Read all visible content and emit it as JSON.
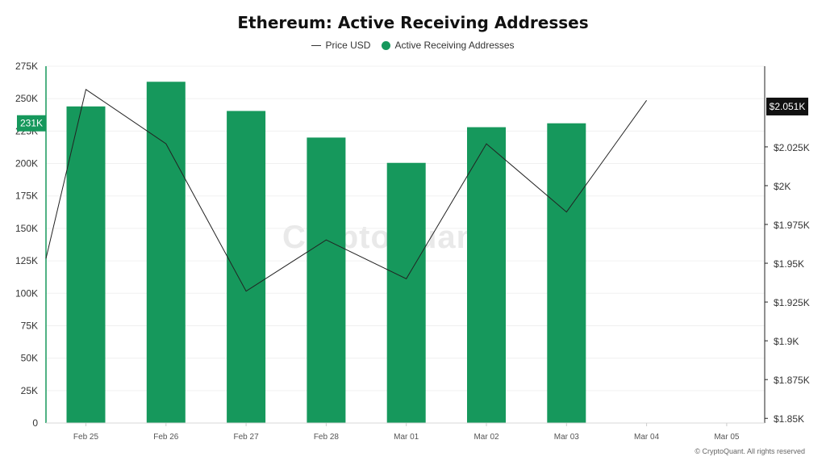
{
  "chart_data": {
    "type": "bar",
    "title": "Ethereum: Active Receiving Addresses",
    "categories": [
      "Feb 25",
      "Feb 26",
      "Feb 27",
      "Feb 28",
      "Mar 01",
      "Mar 02",
      "Mar 03",
      "Mar 04",
      "Mar 05"
    ],
    "series": [
      {
        "name": "Active Receiving Addresses",
        "type": "bar",
        "axis": "left",
        "color": "#16985c",
        "values": [
          244000,
          263000,
          240500,
          220000,
          200500,
          228000,
          231000,
          null,
          null
        ]
      },
      {
        "name": "Price USD",
        "type": "line",
        "axis": "right",
        "color": "#222222",
        "x_points": [
          -0.5,
          0,
          1,
          2,
          3,
          4,
          5,
          6,
          7
        ],
        "values": [
          1953,
          2062,
          2027,
          1932,
          1965,
          1940,
          2027,
          1983,
          2055
        ]
      }
    ],
    "y_left": {
      "ylim": [
        0,
        275000
      ],
      "tick_values": [
        0,
        25000,
        50000,
        75000,
        100000,
        125000,
        150000,
        175000,
        200000,
        225000,
        250000,
        275000
      ],
      "tick_labels": [
        "0",
        "25K",
        "50K",
        "75K",
        "100K",
        "125K",
        "150K",
        "175K",
        "200K",
        "225K",
        "250K",
        "275K"
      ]
    },
    "y_right": {
      "ylim": [
        1847,
        2077
      ],
      "tick_values": [
        1850,
        1875,
        1900,
        1925,
        1950,
        1975,
        2000,
        2025
      ],
      "tick_labels": [
        "$1.85K",
        "$1.875K",
        "$1.9K",
        "$1.925K",
        "$1.95K",
        "$1.975K",
        "$2K",
        "$2.025K"
      ]
    },
    "left_marker": {
      "value": 231000,
      "label": "231K"
    },
    "right_marker": {
      "value": 2051,
      "label": "$2.051K"
    },
    "grid": true,
    "legend_position": "top-center"
  },
  "legend": {
    "price_label": "Price USD",
    "addresses_label": "Active Receiving Addresses"
  },
  "watermark": "CryptoQuant",
  "copyright": "© CryptoQuant. All rights reserved"
}
